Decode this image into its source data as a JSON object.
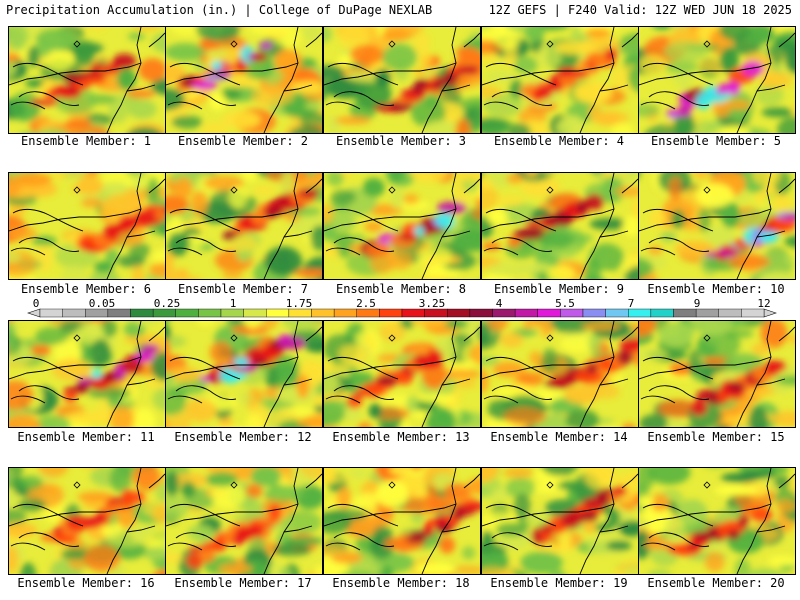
{
  "header": {
    "left": "Precipitation Accumulation (in.) | College of DuPage NEXLAB",
    "right": "12Z GEFS | F240 Valid: 12Z WED JUN 18 2025"
  },
  "colors": {
    "palette": [
      "#d4d4d4",
      "#bdbdbd",
      "#a0a0a0",
      "#7f7f7f",
      "#2e8b3e",
      "#3c9a3c",
      "#4fb040",
      "#77c447",
      "#a6d64c",
      "#d6e84a",
      "#ffff3d",
      "#ffe033",
      "#ffc22a",
      "#ffa21e",
      "#ff7a15",
      "#ff420f",
      "#e8131a",
      "#c8101e",
      "#a40e22",
      "#8a0f3a",
      "#9c1a6e",
      "#c21aa6",
      "#e01ad8",
      "#c05ae8",
      "#8a8ef2",
      "#6fc8f2",
      "#36f0f0",
      "#22d2c8",
      "#7f7f7f",
      "#a0a0a0",
      "#bdbdbd",
      "#d4d4d4"
    ],
    "coast_outline": "#000000"
  },
  "colorbar": {
    "labels": [
      "0",
      "0.05",
      "0.25",
      "1",
      "1.75",
      "2.5",
      "3.25",
      "4",
      "5.5",
      "7",
      "9",
      "12"
    ]
  },
  "panels": [
    {
      "label": "Ensemble Member: 1",
      "max_category": "heavy"
    },
    {
      "label": "Ensemble Member: 2",
      "max_category": "extreme"
    },
    {
      "label": "Ensemble Member: 3",
      "max_category": "heavy"
    },
    {
      "label": "Ensemble Member: 4",
      "max_category": "moderate"
    },
    {
      "label": "Ensemble Member: 5",
      "max_category": "extreme"
    },
    {
      "label": "Ensemble Member: 6",
      "max_category": "moderate"
    },
    {
      "label": "Ensemble Member: 7",
      "max_category": "heavy"
    },
    {
      "label": "Ensemble Member: 8",
      "max_category": "extreme"
    },
    {
      "label": "Ensemble Member: 9",
      "max_category": "heavy"
    },
    {
      "label": "Ensemble Member: 10",
      "max_category": "extreme"
    },
    {
      "label": "Ensemble Member: 11",
      "max_category": "extreme"
    },
    {
      "label": "Ensemble Member: 12",
      "max_category": "extreme"
    },
    {
      "label": "Ensemble Member: 13",
      "max_category": "heavy"
    },
    {
      "label": "Ensemble Member: 14",
      "max_category": "heavy"
    },
    {
      "label": "Ensemble Member: 15",
      "max_category": "heavy"
    },
    {
      "label": "Ensemble Member: 16",
      "max_category": "moderate"
    },
    {
      "label": "Ensemble Member: 17",
      "max_category": "moderate"
    },
    {
      "label": "Ensemble Member: 18",
      "max_category": "heavy"
    },
    {
      "label": "Ensemble Member: 19",
      "max_category": "heavy"
    },
    {
      "label": "Ensemble Member: 20",
      "max_category": "heavy"
    }
  ]
}
